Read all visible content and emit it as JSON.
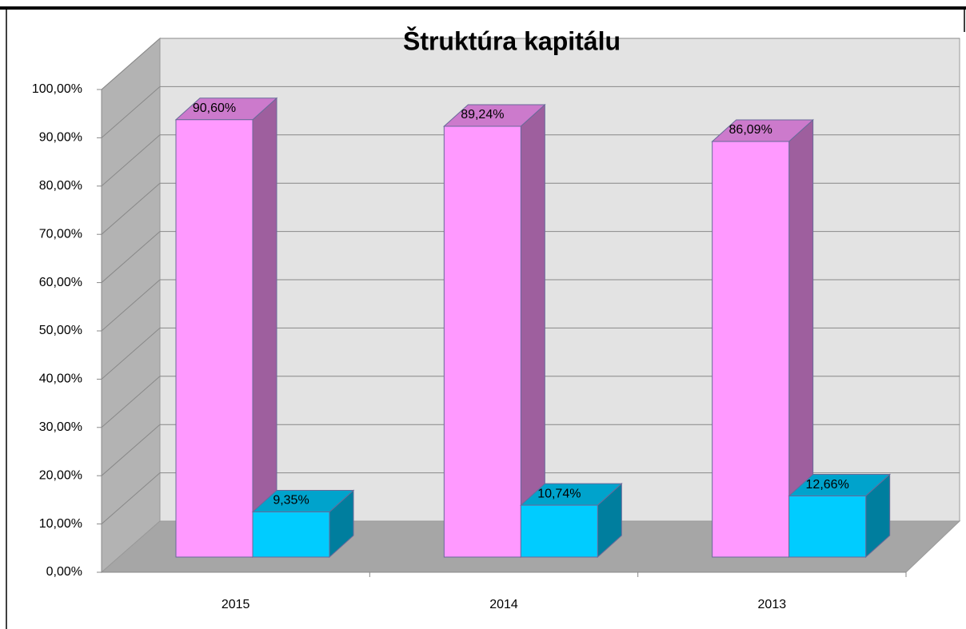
{
  "chart_data": {
    "type": "bar3d",
    "title": "Štruktúra kapitálu",
    "categories": [
      "2015",
      "2014",
      "2013"
    ],
    "series": [
      {
        "color": "#ff99ff",
        "values": [
          90.6,
          89.24,
          86.09
        ],
        "value_labels": [
          "90,60%",
          "89,24%",
          "86,09%"
        ]
      },
      {
        "color": "#00ccff",
        "values": [
          9.35,
          10.74,
          12.66
        ],
        "value_labels": [
          "9,35%",
          "10,74%",
          "12,66%"
        ]
      }
    ],
    "ylim": [
      0,
      100
    ],
    "yticks": [
      {
        "value": 0,
        "label": "0,00%"
      },
      {
        "value": 10,
        "label": "10,00%"
      },
      {
        "value": 20,
        "label": "20,00%"
      },
      {
        "value": 30,
        "label": "30,00%"
      },
      {
        "value": 40,
        "label": "40,00%"
      },
      {
        "value": 50,
        "label": "50,00%"
      },
      {
        "value": 60,
        "label": "60,00%"
      },
      {
        "value": 70,
        "label": "70,00%"
      },
      {
        "value": 80,
        "label": "80,00%"
      },
      {
        "value": 90,
        "label": "90,00%"
      },
      {
        "value": 100,
        "label": "100,00%"
      }
    ],
    "grid": true
  }
}
